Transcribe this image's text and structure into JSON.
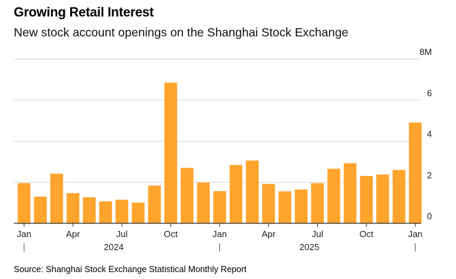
{
  "title": "Growing Retail Interest",
  "subtitle": "New stock account openings on the Shanghai Stock Exchange",
  "source": "Source: Shanghai Stock Exchange Statistical Monthly Report",
  "colors": {
    "bar": "#FFA42C",
    "grid": "#d9d9d9",
    "axis": "#333333"
  },
  "chart_data": {
    "type": "bar",
    "categories": [
      "Jan 2024",
      "Feb 2024",
      "Mar 2024",
      "Apr 2024",
      "May 2024",
      "Jun 2024",
      "Jul 2024",
      "Aug 2024",
      "Sep 2024",
      "Oct 2024",
      "Nov 2024",
      "Dec 2024",
      "Jan 2025",
      "Feb 2025",
      "Mar 2025",
      "Apr 2025",
      "May 2025",
      "Jun 2025",
      "Jul 2025",
      "Aug 2025",
      "Sep 2025",
      "Oct 2025",
      "Nov 2025",
      "Dec 2025",
      "Jan 2026"
    ],
    "values": [
      1.96,
      1.3,
      2.42,
      1.47,
      1.27,
      1.07,
      1.15,
      1.01,
      1.84,
      6.85,
      2.7,
      1.99,
      1.57,
      2.84,
      3.06,
      1.92,
      1.56,
      1.65,
      1.96,
      2.66,
      2.93,
      2.31,
      2.38,
      2.6,
      4.91
    ],
    "ylim": [
      0,
      8
    ],
    "yticks": [
      {
        "value": 0,
        "label": "0"
      },
      {
        "value": 2,
        "label": "2"
      },
      {
        "value": 4,
        "label": "4"
      },
      {
        "value": 6,
        "label": "6"
      },
      {
        "value": 8,
        "label": "8M"
      }
    ],
    "xticks": [
      {
        "index": 0,
        "label": "Jan"
      },
      {
        "index": 3,
        "label": "Apr"
      },
      {
        "index": 6,
        "label": "Jul"
      },
      {
        "index": 9,
        "label": "Oct"
      },
      {
        "index": 12,
        "label": "Jan"
      },
      {
        "index": 15,
        "label": "Apr"
      },
      {
        "index": 18,
        "label": "Jul"
      },
      {
        "index": 21,
        "label": "Oct"
      },
      {
        "index": 24,
        "label": "Jan"
      }
    ],
    "years": [
      {
        "label": "2024",
        "start": 0,
        "end": 11
      },
      {
        "label": "2025",
        "start": 12,
        "end": 23
      }
    ],
    "grid": true,
    "legend": "none"
  }
}
